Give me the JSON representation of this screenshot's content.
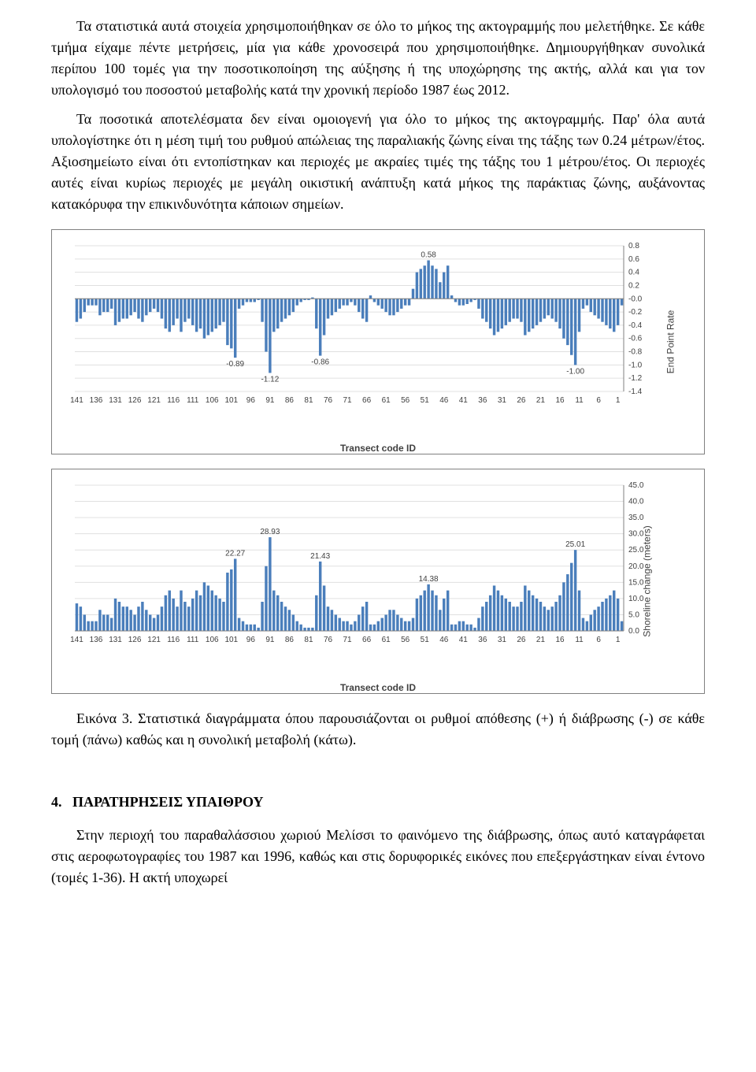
{
  "paragraphs": {
    "p1": "Τα στατιστικά αυτά στοιχεία χρησιμοποιήθηκαν σε όλο το μήκος της ακτογραμμής που μελετήθηκε. Σε κάθε τμήμα είχαμε πέντε μετρήσεις, μία για κάθε χρονοσειρά που χρησιμοποιήθηκε. Δημιουργήθηκαν συνολικά περίπου 100 τομές για την ποσοτικοποίηση της αύξησης ή της υποχώρησης της ακτής, αλλά και για τον υπολογισμό του ποσοστού μεταβολής κατά την χρονική περίοδο 1987 έως 2012.",
    "p2": "Τα ποσοτικά αποτελέσματα δεν είναι ομοιογενή για όλο το μήκος της ακτογραμμής. Παρ' όλα αυτά υπολογίστηκε ότι η μέση τιμή του ρυθμού απώλειας της παραλιακής ζώνης είναι της τάξης των 0.24 μέτρων/έτος. Αξιοσημείωτο είναι ότι εντοπίστηκαν και περιοχές με ακραίες τιμές της τάξης του 1 μέτρου/έτος. Οι περιοχές αυτές είναι κυρίως περιοχές με μεγάλη οικιστική ανάπτυξη κατά μήκος της παράκτιας ζώνης, αυξάνοντας κατακόρυφα την επικινδυνότητα κάποιων σημείων."
  },
  "caption": "Εικόνα 3. Στατιστικά διαγράμματα όπου παρουσιάζονται οι ρυθμοί απόθεσης (+) ή διάβρωσης (-) σε κάθε τομή (πάνω) καθώς και η συνολική μεταβολή (κάτω).",
  "section": {
    "number": "4.",
    "title": "ΠΑΡΑΤΗΡΗΣΕΙΣ ΥΠΑΙΘΡΟΥ"
  },
  "section_paragraph": "Στην περιοχή του παραθαλάσσιου χωριού Μελίσσι το φαινόμενο της διάβρωσης, όπως αυτό καταγράφεται στις αεροφωτογραφίες του 1987 και 1996, καθώς και στις δορυφορικές εικόνες που επεξεργάστηκαν είναι έντονο (τομές 1-36). Η ακτή υποχωρεί",
  "chart1": {
    "type": "bar",
    "ylabel": "End Point Rate",
    "xlabel": "Transect code ID",
    "ylim": [
      -1.4,
      0.8
    ],
    "ytick_step": 0.2,
    "bar_color": "#4a7ebb",
    "gridline_color": "#e0e0e0",
    "axis_color": "#808080",
    "text_color": "#404040",
    "background_color": "#ffffff",
    "tick_fontsize": 10,
    "font_family": "Arial, sans-serif",
    "x_ticks": [
      141,
      136,
      131,
      126,
      121,
      116,
      111,
      106,
      101,
      96,
      91,
      86,
      81,
      76,
      71,
      66,
      61,
      56,
      51,
      46,
      41,
      36,
      31,
      26,
      21,
      16,
      11,
      6,
      1
    ],
    "annotations": [
      {
        "label": "0.58",
        "x_index": 91,
        "y": 0.58
      },
      {
        "label": "-0.89",
        "x_index": 41,
        "y": -0.89
      },
      {
        "label": "-1.12",
        "x_index": 50,
        "y": -1.12
      },
      {
        "label": "-0.86",
        "x_index": 63,
        "y": -0.86
      },
      {
        "label": "-1.00",
        "x_index": 129,
        "y": -1.0
      }
    ],
    "values": [
      -0.35,
      -0.3,
      -0.2,
      -0.1,
      -0.1,
      -0.1,
      -0.25,
      -0.2,
      -0.2,
      -0.15,
      -0.4,
      -0.35,
      -0.3,
      -0.3,
      -0.25,
      -0.2,
      -0.3,
      -0.35,
      -0.25,
      -0.2,
      -0.15,
      -0.2,
      -0.3,
      -0.45,
      -0.5,
      -0.4,
      -0.3,
      -0.5,
      -0.35,
      -0.3,
      -0.4,
      -0.5,
      -0.45,
      -0.6,
      -0.55,
      -0.5,
      -0.45,
      -0.4,
      -0.35,
      -0.7,
      -0.75,
      -0.89,
      -0.15,
      -0.1,
      -0.05,
      -0.05,
      -0.05,
      -0.02,
      -0.35,
      -0.8,
      -1.12,
      -0.5,
      -0.45,
      -0.35,
      -0.3,
      -0.25,
      -0.2,
      -0.1,
      -0.05,
      -0.02,
      -0.02,
      0.02,
      -0.45,
      -0.86,
      -0.55,
      -0.3,
      -0.25,
      -0.2,
      -0.15,
      -0.1,
      -0.1,
      -0.05,
      -0.1,
      -0.2,
      -0.3,
      -0.35,
      0.05,
      -0.05,
      -0.1,
      -0.15,
      -0.2,
      -0.25,
      -0.25,
      -0.2,
      -0.15,
      -0.1,
      -0.1,
      0.15,
      0.4,
      0.45,
      0.5,
      0.58,
      0.5,
      0.45,
      0.25,
      0.4,
      0.5,
      0.05,
      -0.05,
      -0.1,
      -0.1,
      -0.08,
      -0.05,
      -0.02,
      -0.15,
      -0.3,
      -0.35,
      -0.45,
      -0.55,
      -0.5,
      -0.45,
      -0.4,
      -0.35,
      -0.3,
      -0.3,
      -0.35,
      -0.55,
      -0.5,
      -0.45,
      -0.4,
      -0.35,
      -0.3,
      -0.25,
      -0.3,
      -0.35,
      -0.45,
      -0.6,
      -0.7,
      -0.85,
      -1.0,
      -0.5,
      -0.15,
      -0.1,
      -0.2,
      -0.25,
      -0.3,
      -0.35,
      -0.4,
      -0.45,
      -0.5,
      -0.4,
      -0.1
    ]
  },
  "chart2": {
    "type": "bar",
    "ylabel": "Shoreline change (meters)",
    "xlabel": "Transect code ID",
    "ylim": [
      0.0,
      45.0
    ],
    "ytick_step": 5.0,
    "bar_color": "#4a7ebb",
    "gridline_color": "#e0e0e0",
    "axis_color": "#808080",
    "text_color": "#404040",
    "background_color": "#ffffff",
    "tick_fontsize": 10,
    "font_family": "Arial, sans-serif",
    "x_ticks": [
      141,
      136,
      131,
      126,
      121,
      116,
      111,
      106,
      101,
      96,
      91,
      86,
      81,
      76,
      71,
      66,
      61,
      56,
      51,
      46,
      41,
      36,
      31,
      26,
      21,
      16,
      11,
      6,
      1
    ],
    "annotations": [
      {
        "label": "22.27",
        "x_index": 41,
        "y": 22.27
      },
      {
        "label": "28.93",
        "x_index": 50,
        "y": 28.93
      },
      {
        "label": "21.43",
        "x_index": 63,
        "y": 21.43
      },
      {
        "label": "14.38",
        "x_index": 91,
        "y": 14.38
      },
      {
        "label": "25.01",
        "x_index": 129,
        "y": 25.01
      }
    ],
    "values": [
      8.5,
      7.5,
      5,
      3,
      3,
      3,
      6.5,
      5,
      5,
      4,
      10,
      9,
      7.5,
      7.5,
      6.5,
      5,
      7.5,
      9,
      6.5,
      5,
      4,
      5,
      7.5,
      11,
      12.5,
      10,
      7.5,
      12.5,
      9,
      7.5,
      10,
      12.5,
      11,
      15,
      14,
      12.5,
      11,
      10,
      9,
      18,
      19,
      22.27,
      4,
      3,
      2,
      2,
      2,
      1,
      9,
      20,
      28.93,
      12.5,
      11,
      9,
      7.5,
      6.5,
      5,
      3,
      2,
      1,
      1,
      1,
      11,
      21.43,
      14,
      7.5,
      6.5,
      5,
      4,
      3,
      3,
      2,
      3,
      5,
      7.5,
      9,
      2,
      2,
      3,
      4,
      5,
      6.5,
      6.5,
      5,
      4,
      3,
      3,
      4,
      10,
      11,
      12.5,
      14.38,
      12.5,
      11,
      6.5,
      10,
      12.5,
      2,
      2,
      3,
      3,
      2,
      2,
      1,
      4,
      7.5,
      9,
      11,
      14,
      12.5,
      11,
      10,
      9,
      7.5,
      7.5,
      9,
      14,
      12.5,
      11,
      10,
      9,
      7.5,
      6.5,
      7.5,
      9,
      11,
      15,
      17.5,
      21,
      25.01,
      12.5,
      4,
      3,
      5,
      6.5,
      7.5,
      9,
      10,
      11,
      12.5,
      10,
      3
    ]
  }
}
